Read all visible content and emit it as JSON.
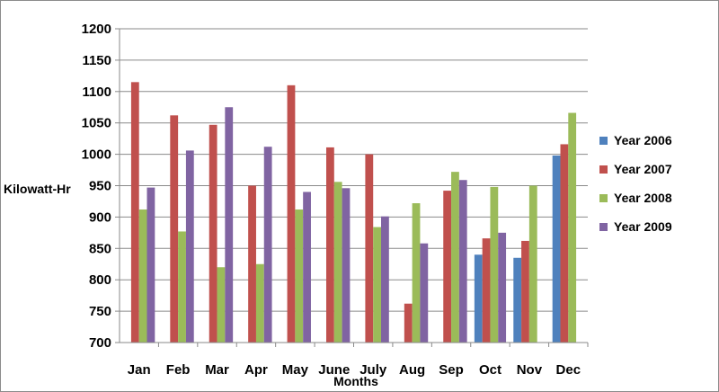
{
  "chart_data": {
    "type": "bar",
    "title": "",
    "xlabel": "Months",
    "ylabel": "Kilowatt-Hr",
    "ylim": [
      700,
      1200
    ],
    "yticks": [
      700,
      750,
      800,
      850,
      900,
      950,
      1000,
      1050,
      1100,
      1150,
      1200
    ],
    "grid": true,
    "legend_position": "right",
    "categories": [
      "Jan",
      "Feb",
      "Mar",
      "Apr",
      "May",
      "June",
      "July",
      "Aug",
      "Sep",
      "Oct",
      "Nov",
      "Dec"
    ],
    "series": [
      {
        "name": "Year 2006",
        "color": "#4f81bd",
        "values": [
          null,
          null,
          null,
          null,
          null,
          null,
          null,
          null,
          null,
          840,
          835,
          998
        ]
      },
      {
        "name": "Year 2007",
        "color": "#c0504d",
        "values": [
          1115,
          1062,
          1047,
          950,
          1110,
          1011,
          1000,
          762,
          942,
          866,
          862,
          1016
        ]
      },
      {
        "name": "Year 2008",
        "color": "#9bbb59",
        "values": [
          912,
          877,
          820,
          825,
          912,
          956,
          884,
          922,
          972,
          948,
          950,
          1066
        ]
      },
      {
        "name": "Year 2009",
        "color": "#8064a2",
        "values": [
          947,
          1006,
          1075,
          1012,
          940,
          946,
          901,
          858,
          959,
          875,
          null,
          null
        ]
      }
    ]
  }
}
